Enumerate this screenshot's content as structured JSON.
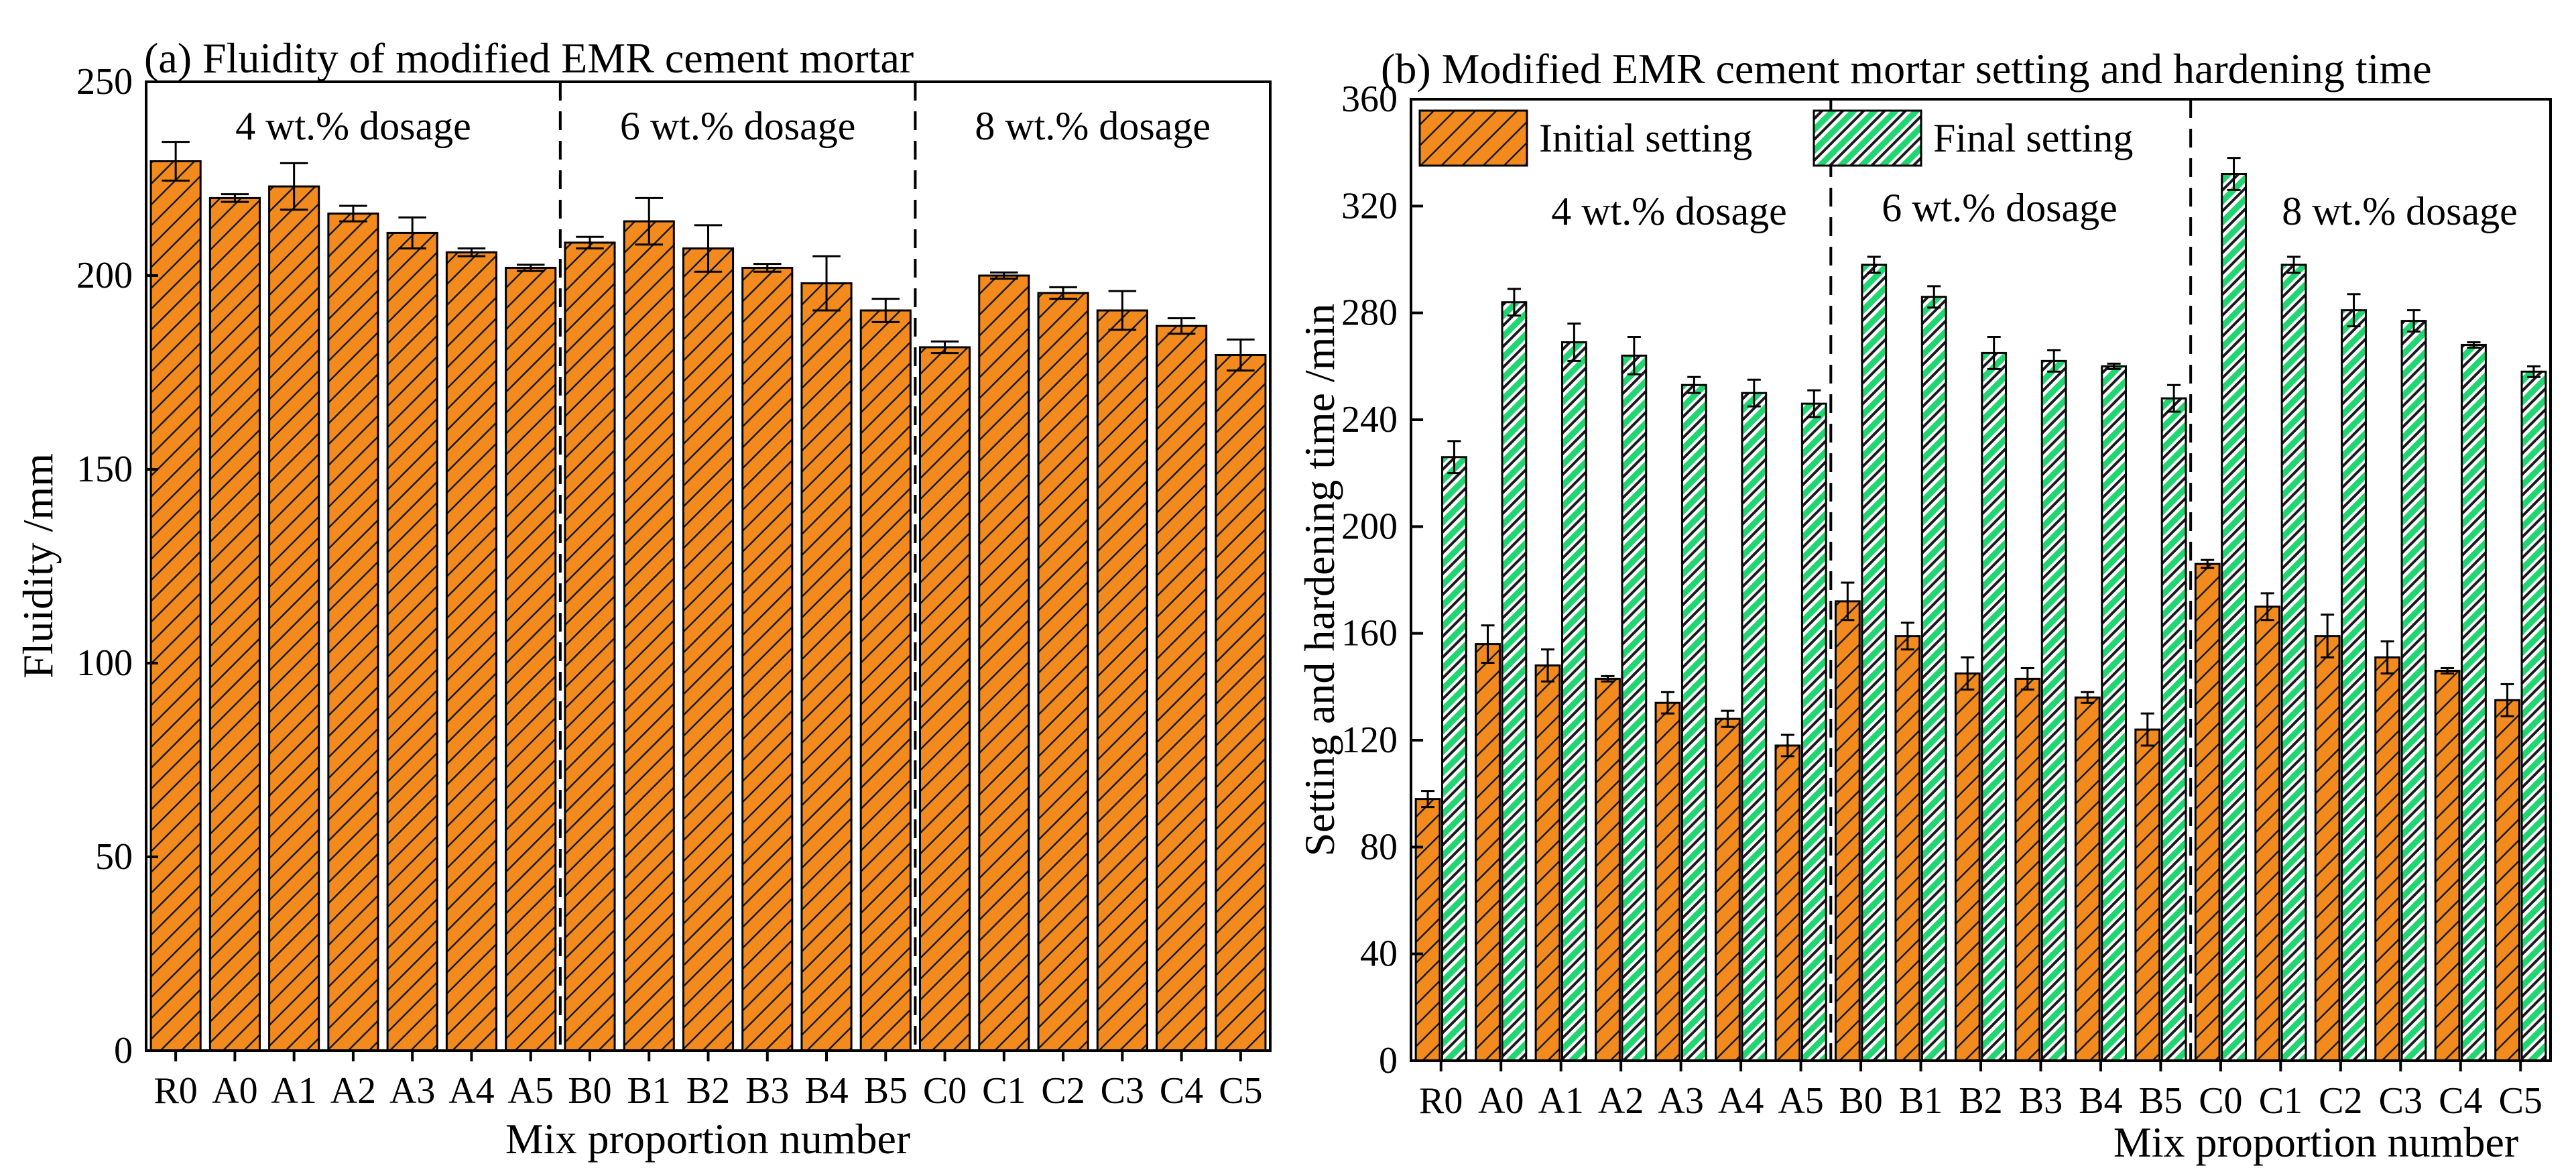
{
  "colors": {
    "orange": "#f28a1d",
    "green": "#1fd671",
    "hatch": "#1a1a1a",
    "axis": "#000000"
  },
  "chart_data": [
    {
      "type": "bar",
      "title": "(a) Fluidity of modified EMR cement mortar",
      "xlabel": "Mix proportion number",
      "ylabel": "Fluidity /mm",
      "ylim": [
        0,
        250
      ],
      "yticks": [
        "0",
        "50",
        "100",
        "150",
        "200",
        "250"
      ],
      "categories": [
        "R0",
        "A0",
        "A1",
        "A2",
        "A3",
        "A4",
        "A5",
        "B0",
        "B1",
        "B2",
        "B3",
        "B4",
        "B5",
        "C0",
        "C1",
        "C2",
        "C3",
        "C4",
        "C5"
      ],
      "series": [
        {
          "name": "Fluidity",
          "color": "#f28a1d",
          "values": [
            229.5,
            220,
            223,
            216,
            211,
            206,
            202,
            208.5,
            214,
            207,
            202,
            198,
            191,
            181.5,
            200,
            195.5,
            191,
            187,
            179.5
          ],
          "errors": [
            5,
            1,
            6,
            2,
            4,
            1,
            0.8,
            1.5,
            6,
            6,
            1,
            7,
            3,
            1.5,
            0.8,
            1.5,
            5,
            2,
            4
          ]
        }
      ],
      "groups": [
        {
          "label": "4 wt.% dosage",
          "start": 0,
          "end": 6
        },
        {
          "label": "6 wt.% dosage",
          "start": 7,
          "end": 12
        },
        {
          "label": "8 wt.% dosage",
          "start": 13,
          "end": 18
        }
      ]
    },
    {
      "type": "bar",
      "title": "(b) Modified EMR cement mortar setting and hardening time",
      "xlabel": "Mix proportion number",
      "ylabel": "Setting and hardening time /min",
      "ylim": [
        0,
        360
      ],
      "yticks": [
        "0",
        "40",
        "80",
        "120",
        "160",
        "200",
        "240",
        "280",
        "320",
        "360"
      ],
      "categories": [
        "R0",
        "A0",
        "A1",
        "A2",
        "A3",
        "A4",
        "A5",
        "B0",
        "B1",
        "B2",
        "B3",
        "B4",
        "B5",
        "C0",
        "C1",
        "C2",
        "C3",
        "C4",
        "C5"
      ],
      "series": [
        {
          "name": "Initial setting",
          "color": "#f28a1d",
          "values": [
            98,
            156,
            148,
            143,
            134,
            128,
            118,
            172,
            159,
            145,
            143,
            136,
            124,
            186,
            170,
            159,
            151,
            146,
            135
          ],
          "errors": [
            3,
            7,
            6,
            1,
            4,
            3,
            4,
            7,
            5,
            6,
            4,
            2,
            6,
            1.5,
            5,
            8,
            6,
            1,
            6
          ]
        },
        {
          "name": "Final setting",
          "color": "#1fd671",
          "values": [
            226,
            284,
            269,
            264,
            253,
            250,
            246,
            298,
            286,
            265,
            262,
            260,
            248,
            332,
            298,
            281,
            277,
            268,
            258
          ],
          "errors": [
            6,
            5,
            7,
            7,
            3,
            5,
            5,
            3,
            4,
            6,
            4,
            1,
            5,
            6,
            3,
            6,
            4,
            1,
            2
          ]
        }
      ],
      "groups": [
        {
          "label": "4 wt.% dosage",
          "start": 0,
          "end": 6
        },
        {
          "label": "6 wt.% dosage",
          "start": 7,
          "end": 12
        },
        {
          "label": "8 wt.% dosage",
          "start": 13,
          "end": 18
        }
      ]
    }
  ]
}
